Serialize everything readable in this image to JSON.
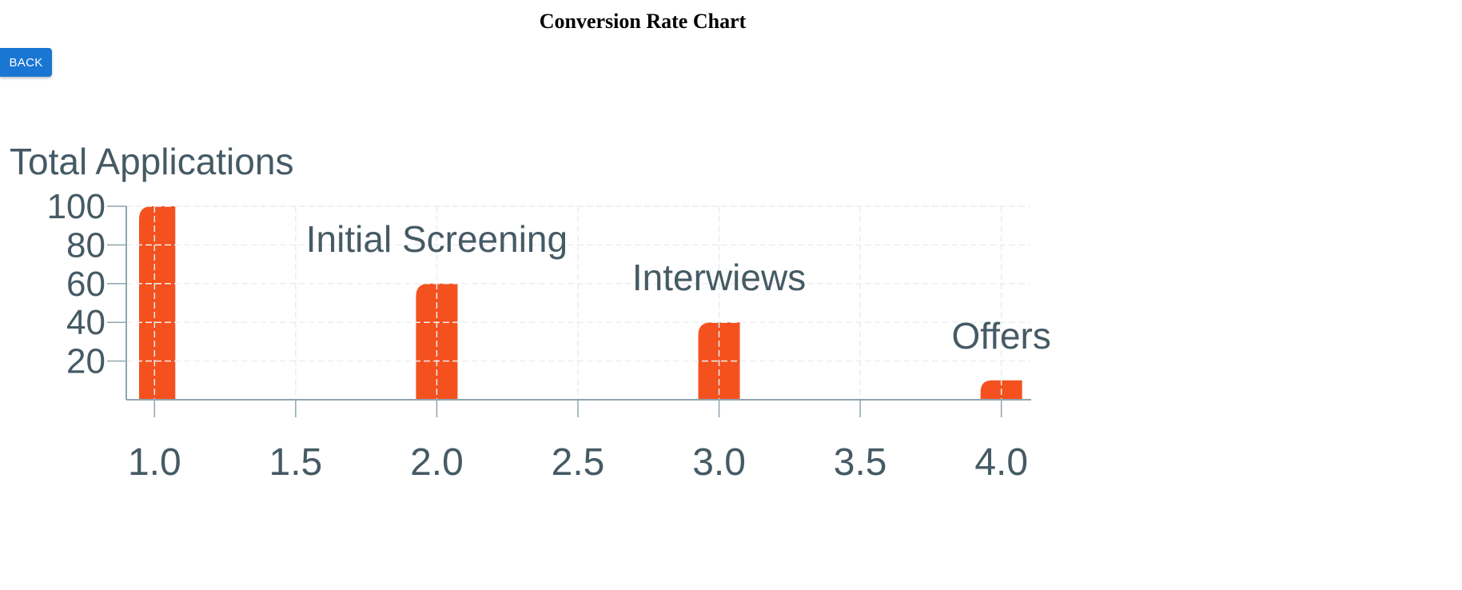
{
  "header": {
    "title": "Conversion Rate Chart"
  },
  "toolbar": {
    "back_label": "BACK"
  },
  "colors": {
    "bar": "#f4511e",
    "text": "#455a64",
    "axis": "#90a4ae",
    "button": "#1976d2"
  },
  "chart_data": {
    "type": "bar",
    "title": "",
    "xlabel": "",
    "ylabel": "",
    "x": [
      1,
      2,
      3,
      4
    ],
    "values": [
      100,
      60,
      40,
      10
    ],
    "labels": [
      "Total Applications",
      "Initial Screening",
      "Interwiews",
      "Offers"
    ],
    "xlim": [
      0.9,
      4.1
    ],
    "ylim": [
      0,
      100
    ],
    "xticks": [
      "1.0",
      "1.5",
      "2.0",
      "2.5",
      "3.0",
      "3.5",
      "4.0"
    ],
    "yticks": [
      "20",
      "40",
      "60",
      "80",
      "100"
    ],
    "grid": true
  }
}
